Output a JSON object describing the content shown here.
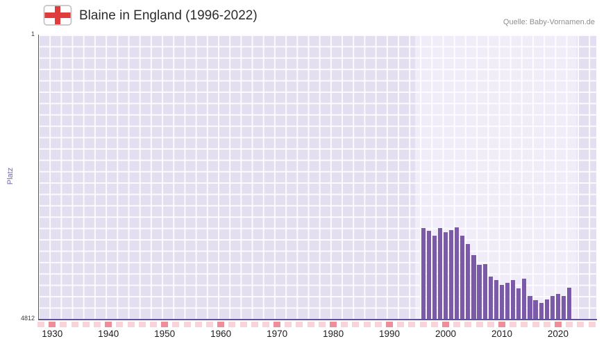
{
  "header": {
    "title": "Blaine in England (1996-2022)",
    "source": "Quelle: Baby-Vornamen.de",
    "flag_icon": "england-flag-icon"
  },
  "colors": {
    "bar": "#7b5ba9",
    "plot_background": "#e4dff0",
    "highlight_background": "#f0edf9",
    "axis": "#5f509a",
    "tick_minor": "#f8d3da",
    "tick_major": "#ee8e99",
    "ylabel": "#7565ae",
    "flag_cross": "#e03c3c"
  },
  "chart_data": {
    "type": "bar",
    "title": "Blaine in England (1996-2022)",
    "xlabel": "",
    "ylabel": "Platz",
    "grid": true,
    "y_axis": {
      "top_label": "1",
      "bottom_label": "4812",
      "min": 1,
      "max": 4812,
      "inverted": true,
      "note": "rank scale, 1 = best, bars grow upward from rank 4812 baseline"
    },
    "x_axis": {
      "ticks": [
        "1930",
        "1940",
        "1950",
        "1960",
        "1970",
        "1980",
        "1990",
        "2000",
        "2010",
        "2020"
      ],
      "domain": [
        1927.5,
        2026.8
      ],
      "minor_tick_step": 2
    },
    "highlight_region": {
      "from": 1994.6,
      "to": 2023.4
    },
    "series": [
      {
        "name": "Platz",
        "color": "#7b5ba9",
        "x": [
          1996,
          1997,
          1998,
          1999,
          2000,
          2001,
          2002,
          2003,
          2004,
          2005,
          2006,
          2007,
          2008,
          2009,
          2010,
          2011,
          2012,
          2013,
          2014,
          2015,
          2016,
          2017,
          2018,
          2019,
          2020,
          2021,
          2022
        ],
        "values": [
          3280,
          3320,
          3400,
          3270,
          3350,
          3310,
          3260,
          3400,
          3550,
          3730,
          3900,
          3880,
          4100,
          4160,
          4240,
          4200,
          4150,
          4300,
          4130,
          4420,
          4500,
          4540,
          4480,
          4430,
          4390,
          4430,
          4280
        ]
      }
    ],
    "legend": null
  }
}
